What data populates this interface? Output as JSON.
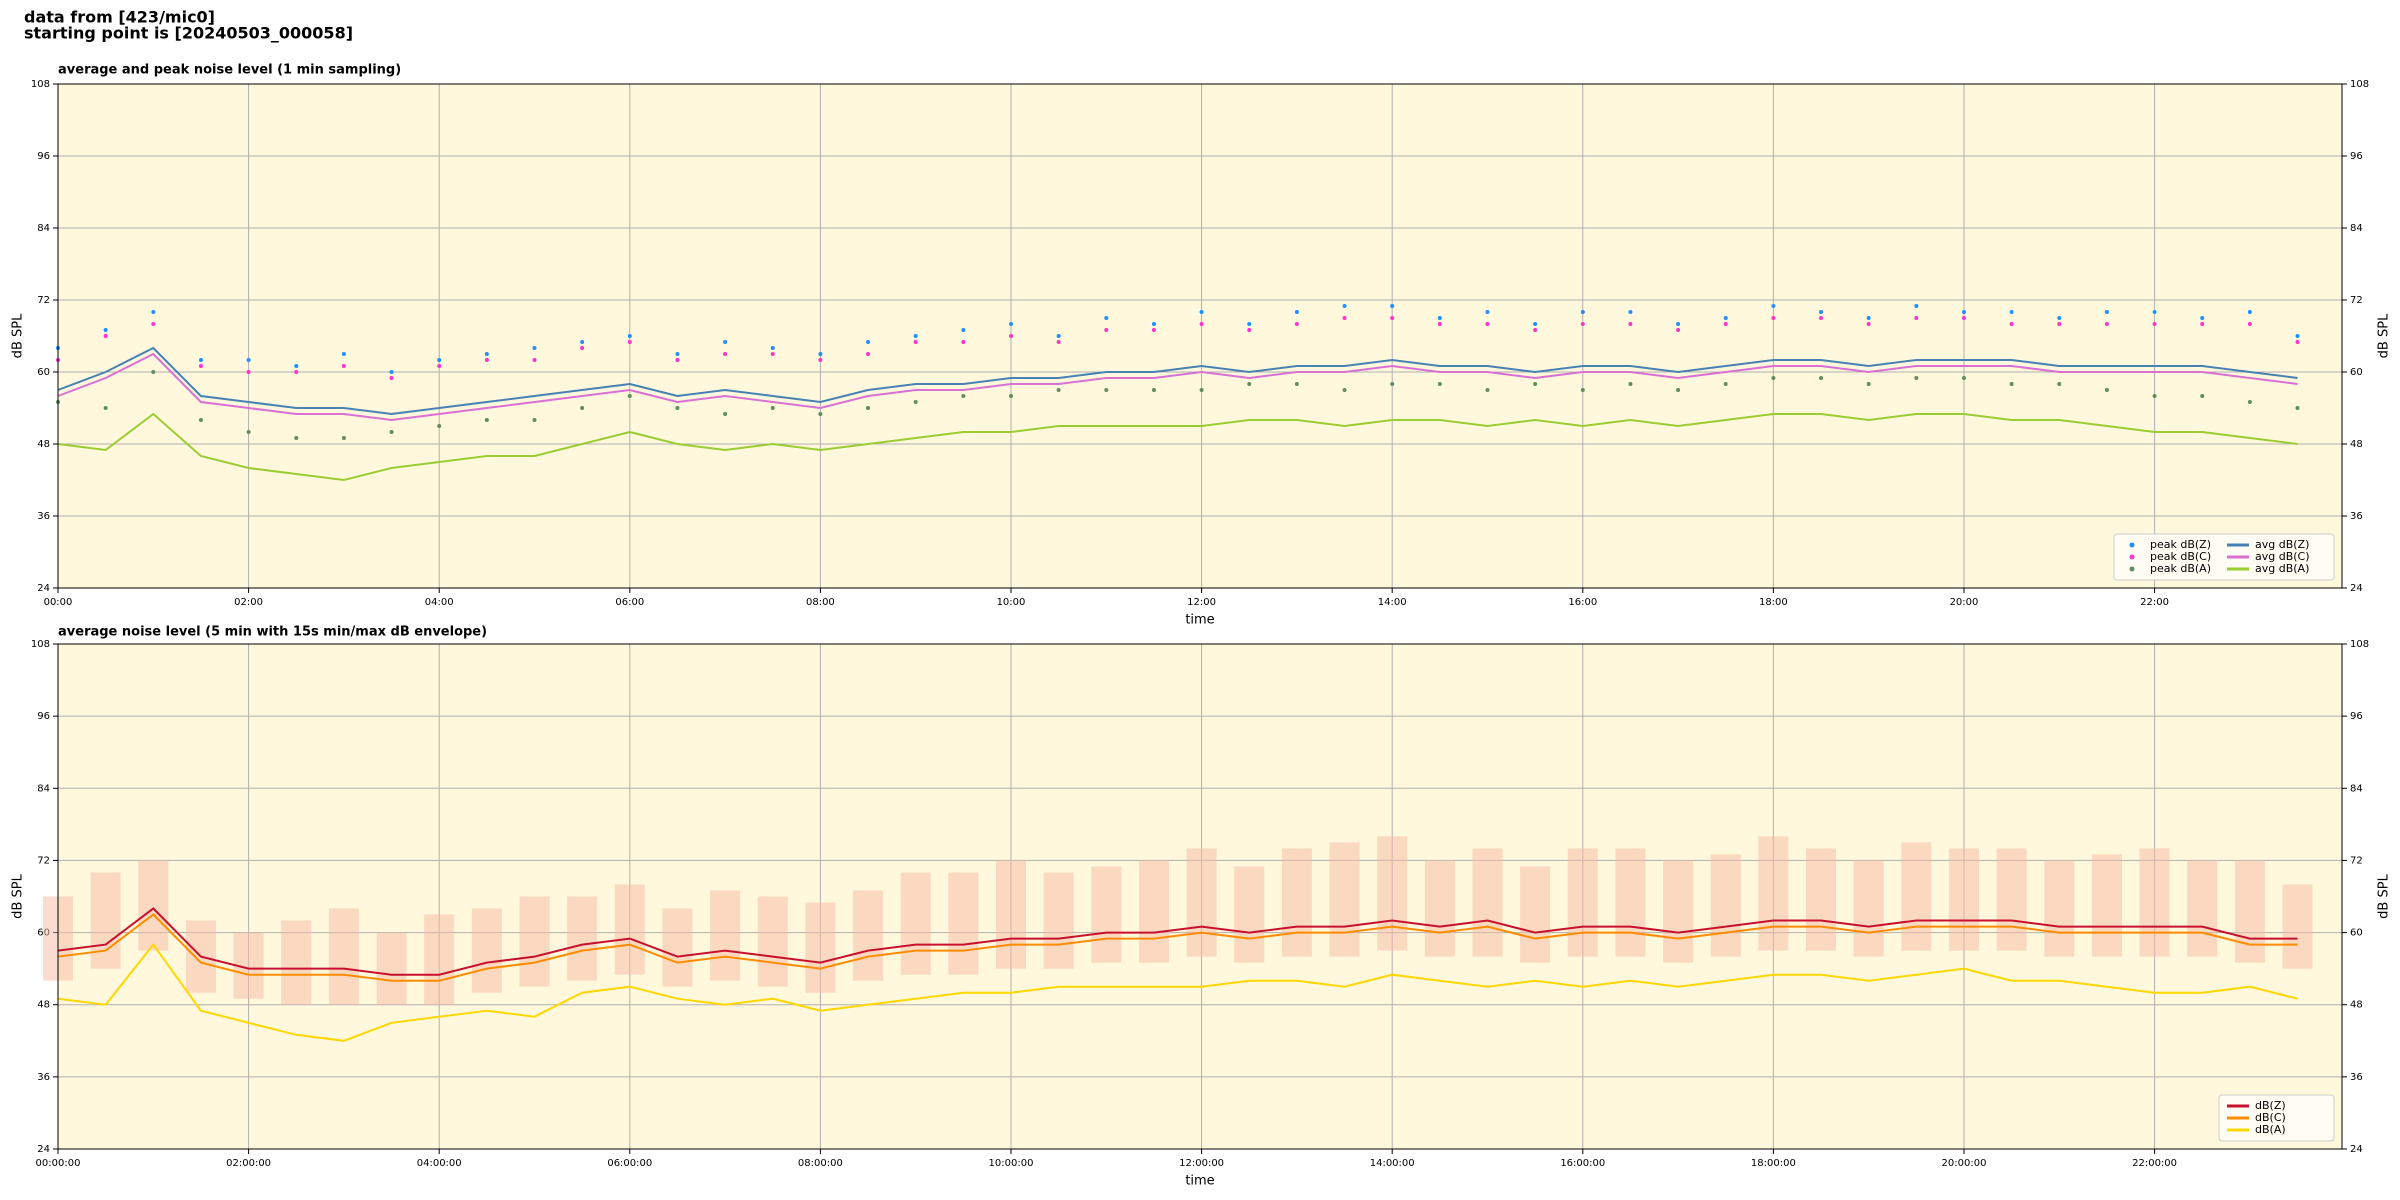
{
  "header": {
    "line1": "data from [423/mic0]",
    "line2": "starting point is [20240503_000058]"
  },
  "chart_data": [
    {
      "type": "line",
      "title": "average and peak noise level (1 min sampling)",
      "xlabel": "time",
      "ylabel": "dB SPL",
      "background": "#fff8dc",
      "grid": true,
      "legend": "lower right",
      "legend_columns": 2,
      "xlim": [
        0,
        1438
      ],
      "ylim": [
        24,
        108
      ],
      "yticks": [
        24,
        36,
        48,
        60,
        72,
        84,
        96,
        108
      ],
      "xticks": [
        {
          "value": 0,
          "label": "00:00"
        },
        {
          "value": 120,
          "label": "02:00"
        },
        {
          "value": 240,
          "label": "04:00"
        },
        {
          "value": 360,
          "label": "06:00"
        },
        {
          "value": 480,
          "label": "08:00"
        },
        {
          "value": 600,
          "label": "10:00"
        },
        {
          "value": 720,
          "label": "12:00"
        },
        {
          "value": 840,
          "label": "14:00"
        },
        {
          "value": 960,
          "label": "16:00"
        },
        {
          "value": 1080,
          "label": "18:00"
        },
        {
          "value": 1200,
          "label": "20:00"
        },
        {
          "value": 1320,
          "label": "22:00"
        }
      ],
      "x": [
        0,
        30,
        60,
        90,
        120,
        150,
        180,
        210,
        240,
        270,
        300,
        330,
        360,
        390,
        420,
        450,
        480,
        510,
        540,
        570,
        600,
        630,
        660,
        690,
        720,
        750,
        780,
        810,
        840,
        870,
        900,
        930,
        960,
        990,
        1020,
        1050,
        1080,
        1110,
        1140,
        1170,
        1200,
        1230,
        1260,
        1290,
        1320,
        1350,
        1380,
        1410
      ],
      "series": [
        {
          "name": "peak dB(Z)",
          "kind": "marker",
          "color": "#1e90ff",
          "values": [
            64,
            67,
            70,
            62,
            62,
            61,
            63,
            60,
            62,
            63,
            64,
            65,
            66,
            63,
            65,
            64,
            63,
            65,
            66,
            67,
            68,
            66,
            69,
            68,
            70,
            68,
            70,
            71,
            71,
            69,
            70,
            68,
            70,
            70,
            68,
            69,
            71,
            70,
            69,
            71,
            70,
            70,
            69,
            70,
            70,
            69,
            70,
            66
          ]
        },
        {
          "name": "peak dB(C)",
          "kind": "marker",
          "color": "#ff33cc",
          "values": [
            62,
            66,
            68,
            61,
            60,
            60,
            61,
            59,
            61,
            62,
            62,
            64,
            65,
            62,
            63,
            63,
            62,
            63,
            65,
            65,
            66,
            65,
            67,
            67,
            68,
            67,
            68,
            69,
            69,
            68,
            68,
            67,
            68,
            68,
            67,
            68,
            69,
            69,
            68,
            69,
            69,
            68,
            68,
            68,
            68,
            68,
            68,
            65
          ]
        },
        {
          "name": "peak dB(A)",
          "kind": "marker",
          "color": "#5f8f5f",
          "values": [
            55,
            54,
            60,
            52,
            50,
            49,
            49,
            50,
            51,
            52,
            52,
            54,
            56,
            54,
            53,
            54,
            53,
            54,
            55,
            56,
            56,
            57,
            57,
            57,
            57,
            58,
            58,
            57,
            58,
            58,
            57,
            58,
            57,
            58,
            57,
            58,
            59,
            59,
            58,
            59,
            59,
            58,
            58,
            57,
            56,
            56,
            55,
            54
          ]
        },
        {
          "name": "avg dB(Z)",
          "kind": "line",
          "color": "#4682b4",
          "values": [
            57,
            60,
            64,
            56,
            55,
            54,
            54,
            53,
            54,
            55,
            56,
            57,
            58,
            56,
            57,
            56,
            55,
            57,
            58,
            58,
            59,
            59,
            60,
            60,
            61,
            60,
            61,
            61,
            62,
            61,
            61,
            60,
            61,
            61,
            60,
            61,
            62,
            62,
            61,
            62,
            62,
            62,
            61,
            61,
            61,
            61,
            60,
            59
          ]
        },
        {
          "name": "avg dB(C)",
          "kind": "line",
          "color": "#da70d6",
          "values": [
            56,
            59,
            63,
            55,
            54,
            53,
            53,
            52,
            53,
            54,
            55,
            56,
            57,
            55,
            56,
            55,
            54,
            56,
            57,
            57,
            58,
            58,
            59,
            59,
            60,
            59,
            60,
            60,
            61,
            60,
            60,
            59,
            60,
            60,
            59,
            60,
            61,
            61,
            60,
            61,
            61,
            61,
            60,
            60,
            60,
            60,
            59,
            58
          ]
        },
        {
          "name": "avg dB(A)",
          "kind": "line",
          "color": "#9acd32",
          "values": [
            48,
            47,
            53,
            46,
            44,
            43,
            42,
            44,
            45,
            46,
            46,
            48,
            50,
            48,
            47,
            48,
            47,
            48,
            49,
            50,
            50,
            51,
            51,
            51,
            51,
            52,
            52,
            51,
            52,
            52,
            51,
            52,
            51,
            52,
            51,
            52,
            53,
            53,
            52,
            53,
            53,
            52,
            52,
            51,
            50,
            50,
            49,
            48
          ]
        }
      ]
    },
    {
      "type": "line",
      "title": "average noise level (5 min with 15s min/max dB envelope)",
      "xlabel": "time",
      "ylabel": "dB SPL",
      "background": "#fff8dc",
      "grid": true,
      "legend": "lower right",
      "legend_columns": 1,
      "xlim": [
        0,
        1438
      ],
      "ylim": [
        24,
        108
      ],
      "yticks": [
        24,
        36,
        48,
        60,
        72,
        84,
        96,
        108
      ],
      "xticks": [
        {
          "value": 0,
          "label": "00:00:00"
        },
        {
          "value": 120,
          "label": "02:00:00"
        },
        {
          "value": 240,
          "label": "04:00:00"
        },
        {
          "value": 360,
          "label": "06:00:00"
        },
        {
          "value": 480,
          "label": "08:00:00"
        },
        {
          "value": 600,
          "label": "10:00:00"
        },
        {
          "value": 720,
          "label": "12:00:00"
        },
        {
          "value": 840,
          "label": "14:00:00"
        },
        {
          "value": 960,
          "label": "16:00:00"
        },
        {
          "value": 1080,
          "label": "18:00:00"
        },
        {
          "value": 1200,
          "label": "20:00:00"
        },
        {
          "value": 1320,
          "label": "22:00:00"
        }
      ],
      "x": [
        0,
        30,
        60,
        90,
        120,
        150,
        180,
        210,
        240,
        270,
        300,
        330,
        360,
        390,
        420,
        450,
        480,
        510,
        540,
        570,
        600,
        630,
        660,
        690,
        720,
        750,
        780,
        810,
        840,
        870,
        900,
        930,
        960,
        990,
        1020,
        1050,
        1080,
        1110,
        1140,
        1170,
        1200,
        1230,
        1260,
        1290,
        1320,
        1350,
        1380,
        1410
      ],
      "envelope": {
        "color": "#f5b9a3",
        "upper": [
          66,
          70,
          72,
          62,
          60,
          62,
          64,
          60,
          63,
          64,
          66,
          66,
          68,
          64,
          67,
          66,
          65,
          67,
          70,
          70,
          72,
          70,
          71,
          72,
          74,
          71,
          74,
          75,
          76,
          72,
          74,
          71,
          74,
          74,
          72,
          73,
          76,
          74,
          72,
          75,
          74,
          74,
          72,
          73,
          74,
          72,
          72,
          68
        ],
        "lower": [
          52,
          54,
          57,
          50,
          49,
          48,
          48,
          48,
          48,
          50,
          51,
          52,
          53,
          51,
          52,
          51,
          50,
          52,
          53,
          53,
          54,
          54,
          55,
          55,
          56,
          55,
          56,
          56,
          57,
          56,
          56,
          55,
          56,
          56,
          55,
          56,
          57,
          57,
          56,
          57,
          57,
          57,
          56,
          56,
          56,
          56,
          55,
          54
        ]
      },
      "series": [
        {
          "name": "dB(Z)",
          "kind": "line",
          "color": "#c8102e",
          "values": [
            57,
            58,
            64,
            56,
            54,
            54,
            54,
            53,
            53,
            55,
            56,
            58,
            59,
            56,
            57,
            56,
            55,
            57,
            58,
            58,
            59,
            59,
            60,
            60,
            61,
            60,
            61,
            61,
            62,
            61,
            62,
            60,
            61,
            61,
            60,
            61,
            62,
            62,
            61,
            62,
            62,
            62,
            61,
            61,
            61,
            61,
            59,
            59
          ]
        },
        {
          "name": "dB(C)",
          "kind": "line",
          "color": "#ff8c00",
          "values": [
            56,
            57,
            63,
            55,
            53,
            53,
            53,
            52,
            52,
            54,
            55,
            57,
            58,
            55,
            56,
            55,
            54,
            56,
            57,
            57,
            58,
            58,
            59,
            59,
            60,
            59,
            60,
            60,
            61,
            60,
            61,
            59,
            60,
            60,
            59,
            60,
            61,
            61,
            60,
            61,
            61,
            61,
            60,
            60,
            60,
            60,
            58,
            58
          ]
        },
        {
          "name": "dB(A)",
          "kind": "line",
          "color": "#ffd700",
          "values": [
            49,
            48,
            58,
            47,
            45,
            43,
            42,
            45,
            46,
            47,
            46,
            50,
            51,
            49,
            48,
            49,
            47,
            48,
            49,
            50,
            50,
            51,
            51,
            51,
            51,
            52,
            52,
            51,
            53,
            52,
            51,
            52,
            51,
            52,
            51,
            52,
            53,
            53,
            52,
            53,
            54,
            52,
            52,
            51,
            50,
            50,
            51,
            49
          ]
        }
      ]
    }
  ]
}
